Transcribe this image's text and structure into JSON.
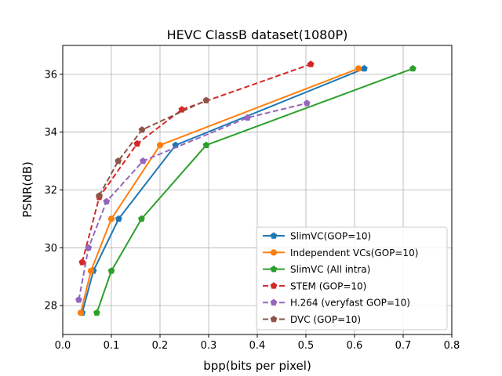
{
  "chart_data": {
    "type": "line",
    "title": "HEVC ClassB dataset(1080P)",
    "xlabel": "bpp(bits per pixel)",
    "ylabel": "PSNR(dB)",
    "xlim": [
      0.0,
      0.8
    ],
    "ylim": [
      27.0,
      37.0
    ],
    "xticks": [
      "0.0",
      "0.1",
      "0.2",
      "0.3",
      "0.4",
      "0.5",
      "0.6",
      "0.7",
      "0.8"
    ],
    "yticks": [
      "28",
      "30",
      "32",
      "34",
      "36"
    ],
    "grid": true,
    "legend_position": "lower-right",
    "series": [
      {
        "name": "SlimVC(GOP=10)",
        "color": "#1f77b4",
        "marker": "pentagon",
        "dashed": false,
        "x": [
          0.04,
          0.063,
          0.115,
          0.232,
          0.62
        ],
        "y": [
          27.75,
          29.2,
          31.0,
          33.55,
          36.2
        ]
      },
      {
        "name": "Independent VCs(GOP=10)",
        "color": "#ff7f0e",
        "marker": "circle",
        "dashed": false,
        "x": [
          0.037,
          0.058,
          0.1,
          0.2,
          0.608
        ],
        "y": [
          27.75,
          29.2,
          31.0,
          33.55,
          36.2
        ]
      },
      {
        "name": "SlimVC (All intra)",
        "color": "#2ca02c",
        "marker": "pentagon",
        "dashed": false,
        "x": [
          0.07,
          0.1,
          0.162,
          0.295,
          0.72
        ],
        "y": [
          27.75,
          29.2,
          31.0,
          33.55,
          36.2
        ]
      },
      {
        "name": "STEM (GOP=10)",
        "color": "#d62728",
        "marker": "pentagon",
        "dashed": true,
        "x": [
          0.04,
          0.075,
          0.153,
          0.245,
          0.51
        ],
        "y": [
          29.5,
          31.75,
          33.6,
          34.78,
          36.35
        ]
      },
      {
        "name": "H.264 (veryfast GOP=10)",
        "color": "#9467bd",
        "marker": "pentagon",
        "dashed": true,
        "x": [
          0.033,
          0.053,
          0.09,
          0.165,
          0.38,
          0.502
        ],
        "y": [
          28.2,
          30.0,
          31.6,
          33.0,
          34.5,
          35.0
        ]
      },
      {
        "name": "DVC (GOP=10)",
        "color": "#8c564b",
        "marker": "pentagon",
        "dashed": true,
        "x": [
          0.075,
          0.114,
          0.163,
          0.295
        ],
        "y": [
          31.8,
          33.0,
          34.08,
          35.1
        ]
      }
    ]
  }
}
